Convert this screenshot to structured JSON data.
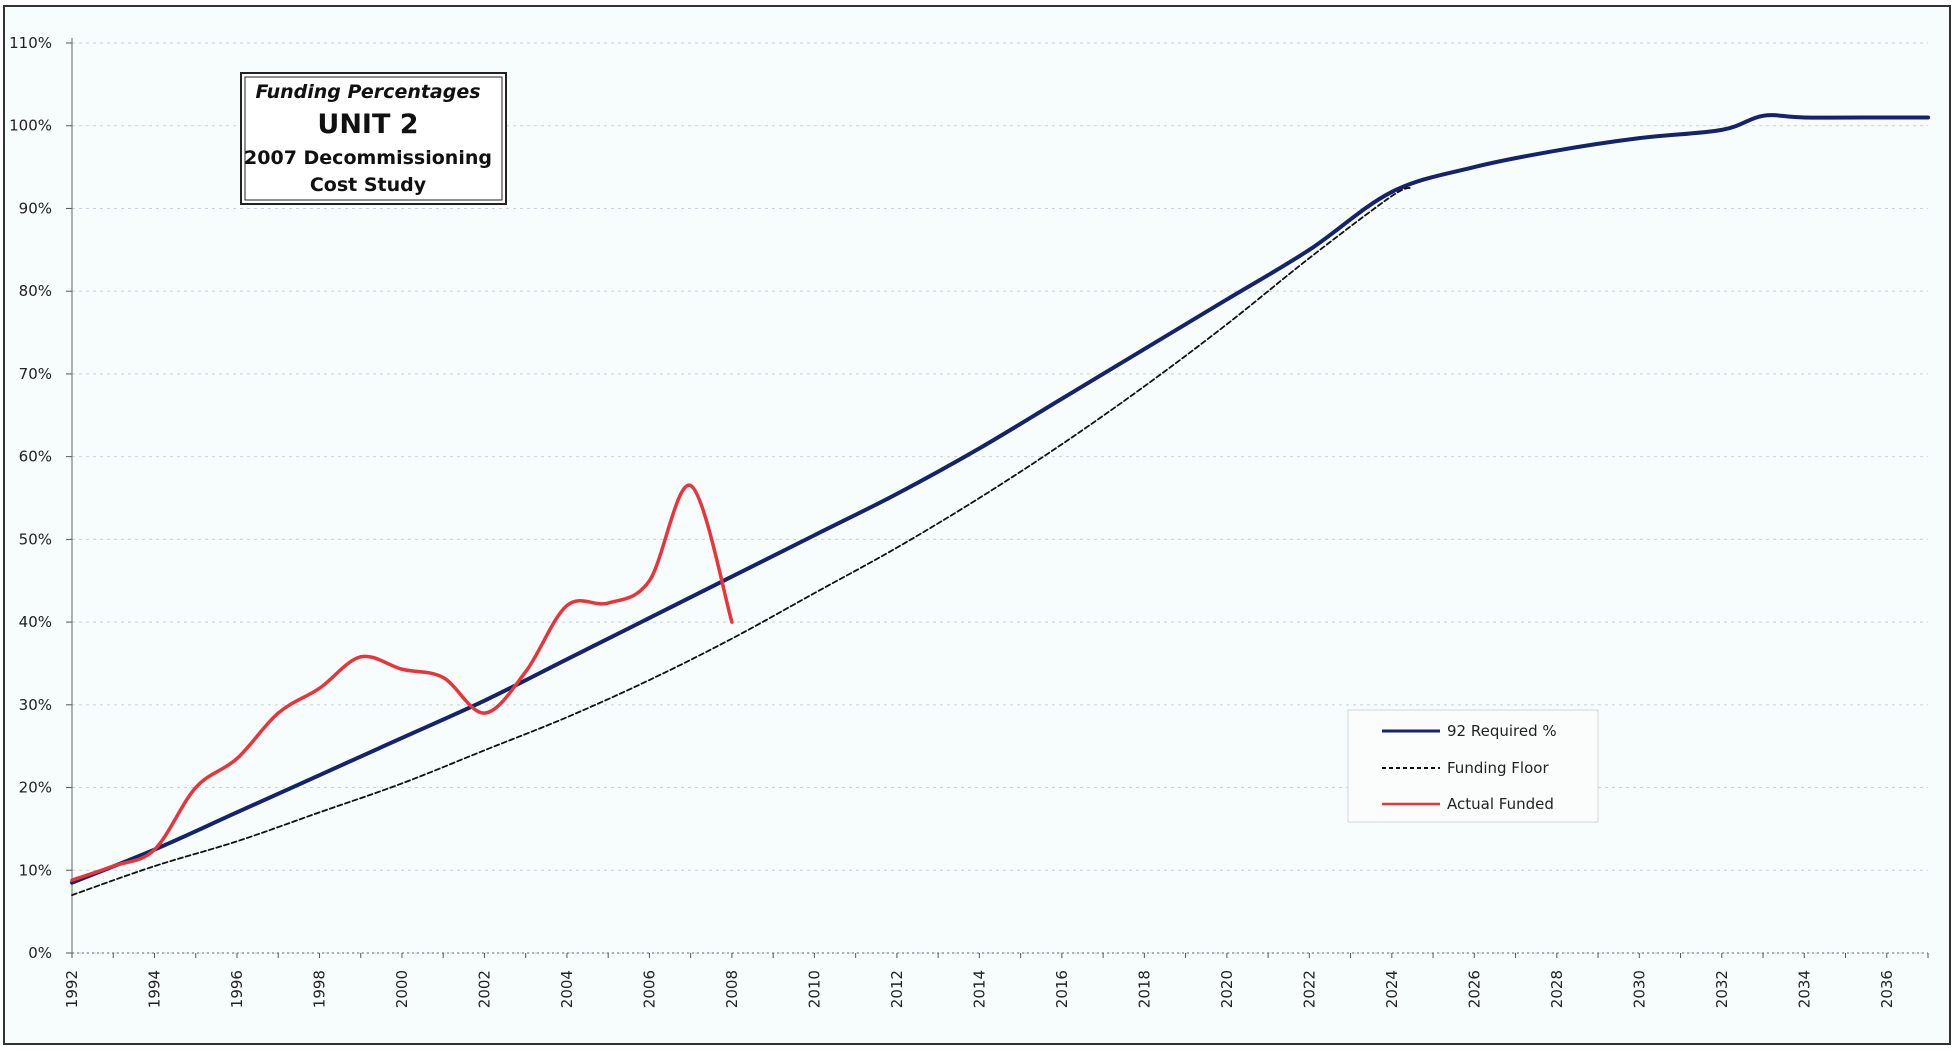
{
  "colors": {
    "background": "#f7fcfc",
    "frame": "#333333",
    "grid": "#c8d2dc",
    "required": "#15236b",
    "floor": "#111111",
    "actual": "#e8343a"
  },
  "title_box": {
    "line1": "Funding Percentages",
    "line2": "UNIT 2",
    "line3": "2007 Decommissioning",
    "line4": "Cost Study"
  },
  "chart_data": {
    "type": "line",
    "title": "Funding Percentages UNIT 2 2007 Decommissioning Cost Study",
    "xlabel": "",
    "ylabel": "",
    "xlim": [
      1992,
      2037
    ],
    "ylim": [
      0,
      110
    ],
    "grid": true,
    "legend_position": "bottom-right",
    "y_ticks": [
      0,
      10,
      20,
      30,
      40,
      50,
      60,
      70,
      80,
      90,
      100,
      110
    ],
    "y_tick_labels": [
      "0%",
      "10%",
      "20%",
      "30%",
      "40%",
      "50%",
      "60%",
      "70%",
      "80%",
      "90%",
      "100%",
      "110%"
    ],
    "x_ticks": [
      1992,
      1994,
      1996,
      1998,
      2000,
      2002,
      2004,
      2006,
      2008,
      2010,
      2012,
      2014,
      2016,
      2018,
      2020,
      2022,
      2024,
      2026,
      2028,
      2030,
      2032,
      2034,
      2036
    ],
    "x_tick_labels": [
      "1992",
      "1994",
      "1996",
      "1998",
      "2000",
      "2002",
      "2004",
      "2006",
      "2008",
      "2010",
      "2012",
      "2014",
      "2016",
      "2018",
      "2020",
      "2022",
      "2024",
      "2026",
      "2028",
      "2030",
      "2032",
      "2034",
      "2036"
    ],
    "series": [
      {
        "name": "92 Required %",
        "style": "solid",
        "x": [
          1992,
          1994,
          1996,
          1998,
          2000,
          2002,
          2004,
          2006,
          2008,
          2010,
          2012,
          2014,
          2016,
          2018,
          2020,
          2022,
          2024,
          2026,
          2028,
          2030,
          2032,
          2033,
          2034,
          2036,
          2037
        ],
        "y": [
          8.5,
          12.5,
          17,
          21.5,
          26,
          30.5,
          35.5,
          40.5,
          45.5,
          50.5,
          55.5,
          61,
          67,
          73,
          79,
          85,
          92,
          95,
          97,
          98.5,
          99.5,
          101.2,
          101,
          101,
          101
        ]
      },
      {
        "name": "Funding Floor",
        "style": "dashed",
        "x": [
          1992,
          1994,
          1996,
          1998,
          2000,
          2002,
          2004,
          2006,
          2008,
          2010,
          2012,
          2014,
          2016,
          2018,
          2020,
          2022,
          2024,
          2024.5
        ],
        "y": [
          7,
          10.5,
          13.5,
          17,
          20.5,
          24.5,
          28.5,
          33,
          38,
          43.5,
          49,
          55,
          61.5,
          68.5,
          76,
          84,
          91.5,
          92.5
        ]
      },
      {
        "name": "Actual Funded",
        "style": "solid",
        "x": [
          1992,
          1993,
          1994,
          1995,
          1996,
          1997,
          1998,
          1999,
          2000,
          2001,
          2002,
          2003,
          2004,
          2005,
          2006,
          2007,
          2008
        ],
        "y": [
          8.8,
          10.5,
          12.5,
          20,
          23.5,
          29,
          32,
          35.8,
          34.3,
          33.3,
          29,
          34,
          42,
          42.3,
          45,
          56.5,
          40
        ]
      }
    ]
  }
}
